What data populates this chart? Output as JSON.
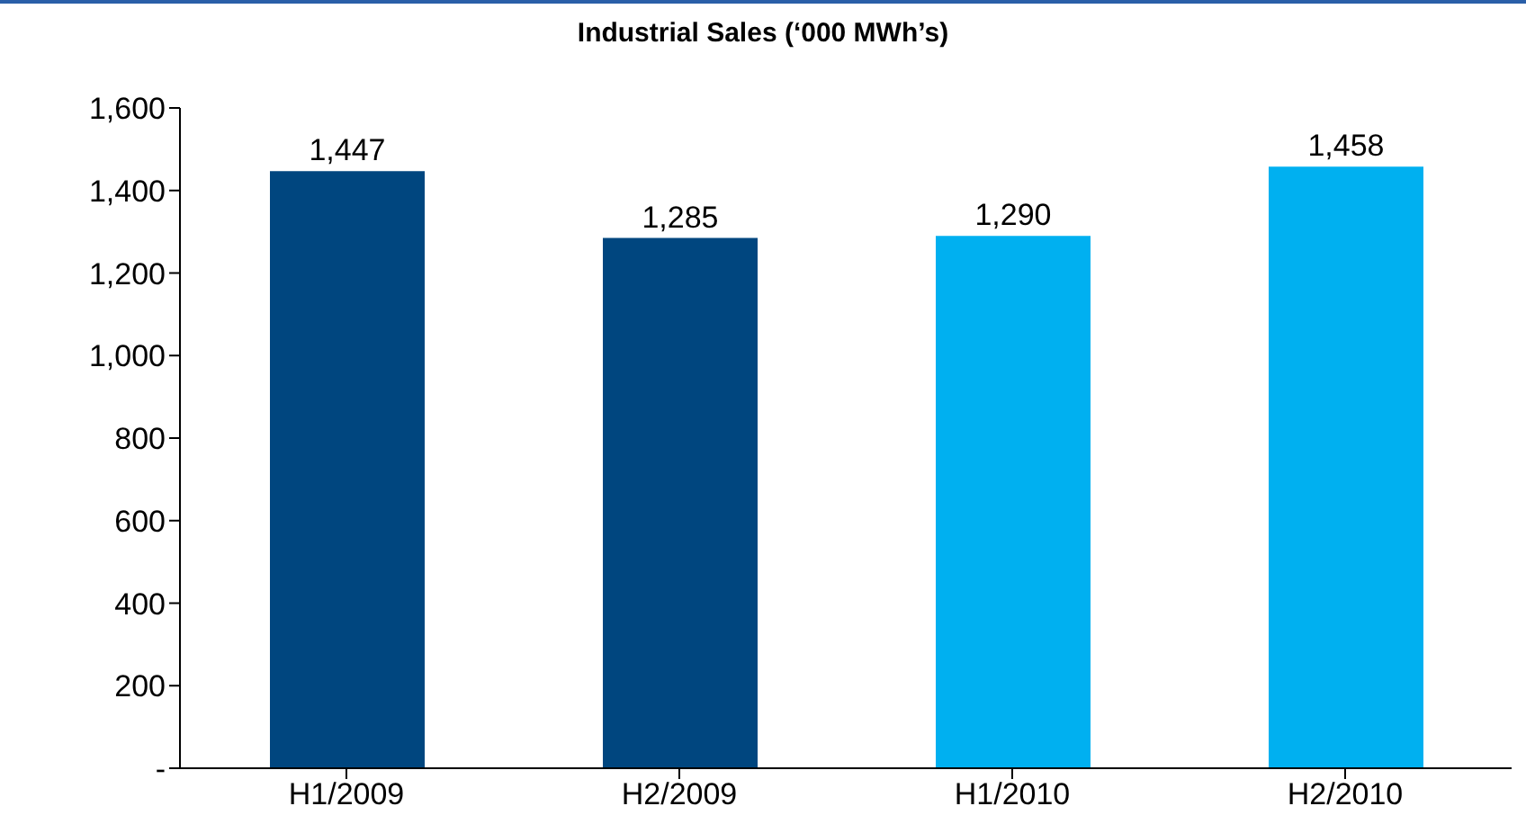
{
  "chart_data": {
    "type": "bar",
    "title": "Industrial Sales (‘000 MWh’s)",
    "categories": [
      "H1/2009",
      "H2/2009",
      "H1/2010",
      "H2/2010"
    ],
    "values": [
      1447,
      1285,
      1290,
      1458
    ],
    "colors": [
      "#00467f",
      "#00467f",
      "#00b0f0",
      "#00b0f0"
    ],
    "value_labels": [
      "1,447",
      "1,285",
      "1,290",
      "1,458"
    ],
    "ylim": [
      0,
      1600
    ],
    "yticks": [
      {
        "value": 0,
        "label": "-"
      },
      {
        "value": 200,
        "label": "200"
      },
      {
        "value": 400,
        "label": "400"
      },
      {
        "value": 600,
        "label": "600"
      },
      {
        "value": 800,
        "label": "800"
      },
      {
        "value": 1000,
        "label": "1,000"
      },
      {
        "value": 1200,
        "label": "1,200"
      },
      {
        "value": 1400,
        "label": "1,400"
      },
      {
        "value": 1600,
        "label": "1,600"
      }
    ],
    "grid": false,
    "legend": false
  }
}
